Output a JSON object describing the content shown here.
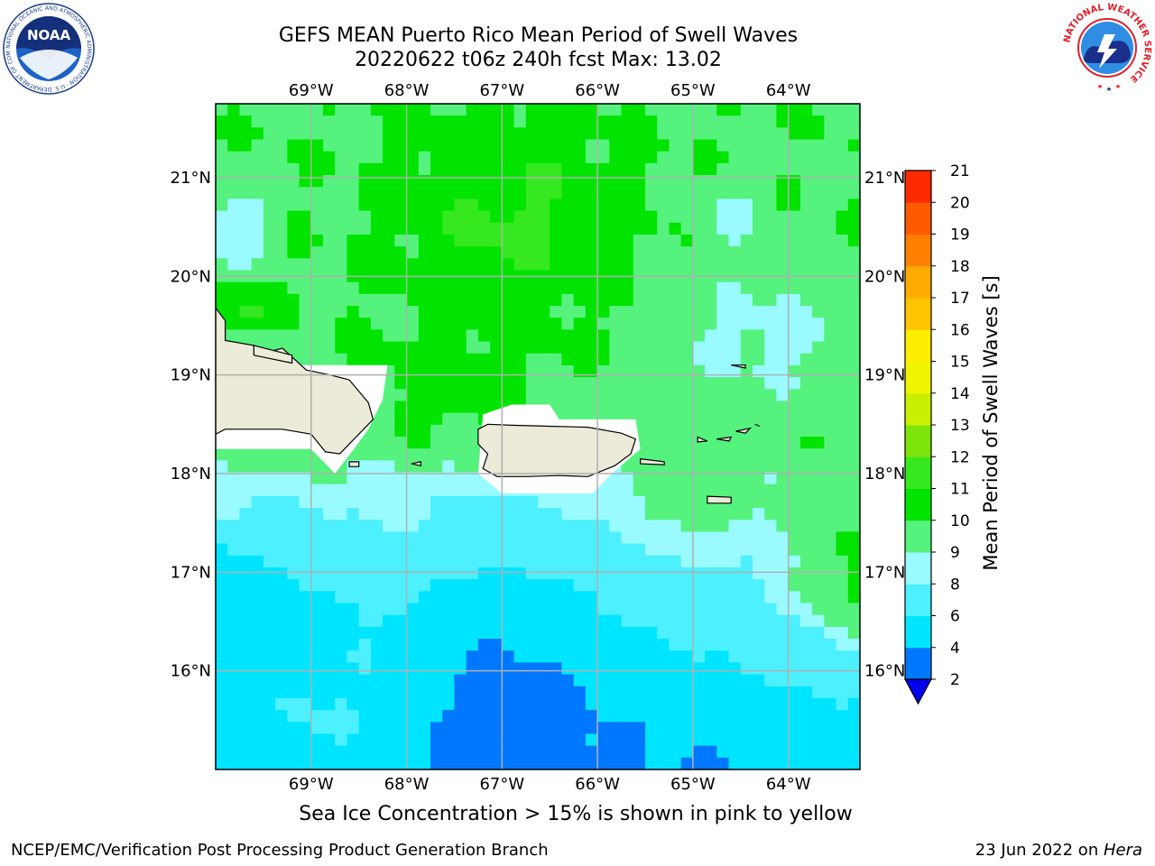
{
  "header": {
    "title_line1": "GEFS MEAN Puerto Rico Mean Period of Swell Waves",
    "title_line2": "20220622 t06z 240h fcst   Max: 13.02"
  },
  "logos": {
    "noaa_text": "NOAA",
    "noaa_ring_text": "NATIONAL OCEANIC AND ATMOSPHERIC ADMINISTRATION · U.S. DEPARTMENT OF COMMERCE",
    "nws_ring_text": "NATIONAL WEATHER SERVICE"
  },
  "footer": {
    "subtitle": "Sea Ice Concentration > 15% is shown in pink to yellow",
    "credit": "NCEP/EMC/Verification Post Processing Product Generation Branch",
    "date": "23 Jun 2022 on ",
    "host": "Hera"
  },
  "chart_data": {
    "type": "heatmap",
    "title": "GEFS MEAN Puerto Rico Mean Period of Swell Waves",
    "lon_range": [
      -70.0,
      -63.25
    ],
    "lat_range": [
      15.0,
      21.75
    ],
    "lon_ticks": [
      "69°W",
      "68°W",
      "67°W",
      "66°W",
      "65°W",
      "64°W"
    ],
    "lon_tick_values": [
      -69,
      -68,
      -67,
      -66,
      -65,
      -64
    ],
    "lat_ticks": [
      "21°N",
      "20°N",
      "19°N",
      "18°N",
      "17°N",
      "16°N"
    ],
    "lat_tick_values": [
      21,
      20,
      19,
      18,
      17,
      16
    ],
    "grid": true,
    "colorbar": {
      "label": "Mean Period of Swell Waves [s]",
      "levels": [
        2,
        4,
        6,
        8,
        9,
        10,
        11,
        12,
        13,
        14,
        15,
        16,
        17,
        18,
        19,
        20,
        21
      ],
      "colors": [
        "#0077ff",
        "#00e5ff",
        "#4df0ff",
        "#99fbff",
        "#55f27e",
        "#00e400",
        "#36e81f",
        "#7fe40c",
        "#c8f000",
        "#eff500",
        "#ffee00",
        "#ffc400",
        "#ffaa00",
        "#ff8000",
        "#ff5a00",
        "#ff2a00"
      ],
      "under_color": "#0000ee",
      "extend": "min"
    },
    "max_value": 13.02,
    "colors": {
      "land": "#ecead8",
      "no_data": "#ffffff",
      "grid": "#b0b0b0",
      "coast": "#000000"
    }
  }
}
